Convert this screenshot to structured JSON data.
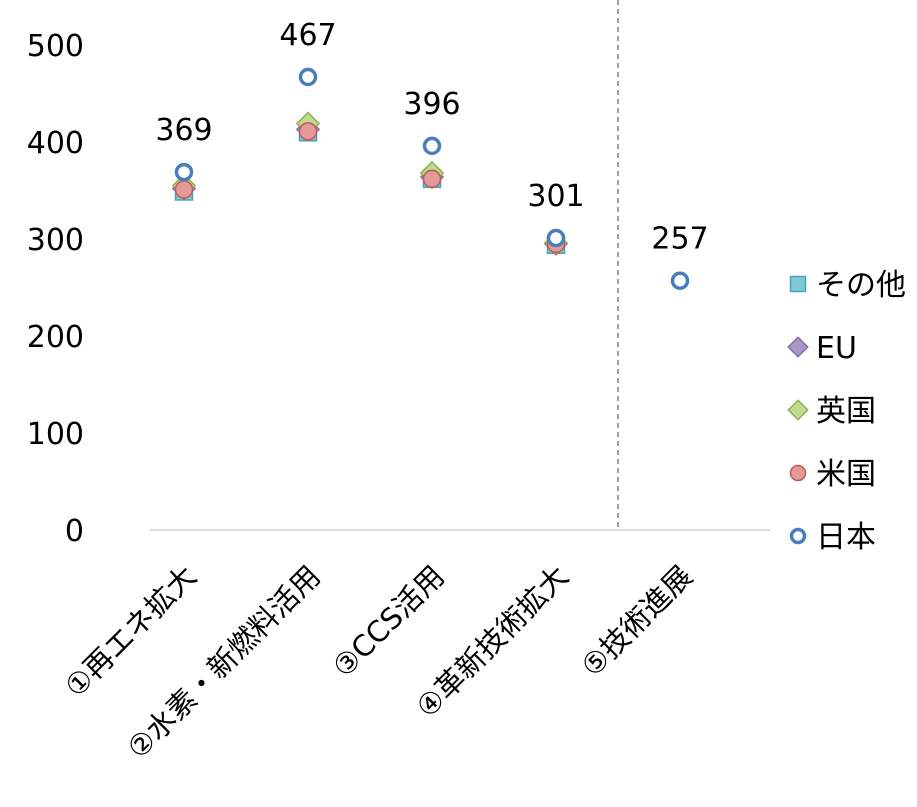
{
  "chart_data": {
    "type": "scatter",
    "categories": [
      "①再エネ拡大",
      "②水素・新燃料活用",
      "③CCS活用",
      "④革新技術拡大",
      "⑤技術進展"
    ],
    "ylim": [
      0,
      500
    ],
    "yticks": [
      0,
      100,
      200,
      300,
      400,
      500
    ],
    "grid": false,
    "legend_position": "right",
    "separator_after_category": 4,
    "series": [
      {
        "name": "その他",
        "marker": "square",
        "color": "#7ec8d8",
        "stroke": "#4aa3b8",
        "values": [
          349,
          410,
          362,
          294,
          null
        ]
      },
      {
        "name": "EU",
        "marker": "diamond",
        "color": "#a898c8",
        "stroke": "#8070a8",
        "values": [
          352,
          413,
          364,
          295,
          null
        ]
      },
      {
        "name": "英国",
        "marker": "diamond",
        "color": "#c0da8e",
        "stroke": "#8fb050",
        "values": [
          355,
          419,
          368,
          296,
          null
        ]
      },
      {
        "name": "米国",
        "marker": "circle-filled",
        "color": "#e39a98",
        "stroke": "#c05a58",
        "values": [
          351,
          411,
          362,
          295,
          null
        ]
      },
      {
        "name": "日本",
        "marker": "circle-open",
        "color": "#ffffff",
        "stroke": "#4a7ebb",
        "values": [
          369,
          467,
          396,
          301,
          257
        ]
      }
    ],
    "data_labels": [
      "369",
      "467",
      "396",
      "301",
      "257"
    ]
  }
}
